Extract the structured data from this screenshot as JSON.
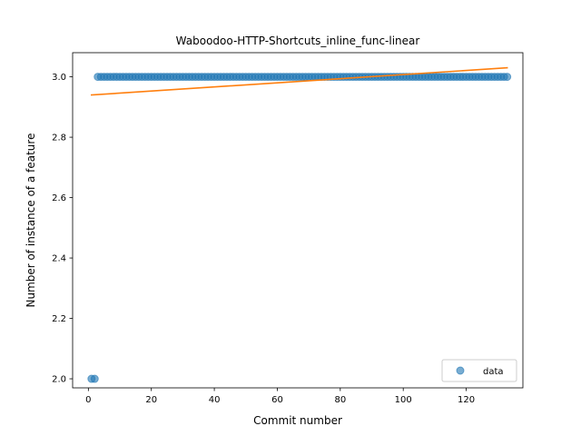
{
  "chart_data": {
    "type": "scatter",
    "title": "Waboodoo-HTTP-Shortcuts_inline_func-linear",
    "xlabel": "Commit number",
    "ylabel": "Number of instance of a feature",
    "xlim": [
      -5,
      138
    ],
    "ylim": [
      1.97,
      3.08
    ],
    "xticks": [
      0,
      20,
      40,
      60,
      80,
      100,
      120
    ],
    "yticks": [
      2.0,
      2.2,
      2.4,
      2.6,
      2.8,
      3.0
    ],
    "ytick_labels": [
      "2.0",
      "2.2",
      "2.4",
      "2.6",
      "2.8",
      "3.0"
    ],
    "grid": false,
    "legend": {
      "position": "lower-right",
      "entries": [
        "data"
      ]
    },
    "series": [
      {
        "name": "data",
        "kind": "scatter",
        "color": "#1f77b4",
        "points_low": {
          "x": [
            1,
            2
          ],
          "y": 2.0
        },
        "points_high": {
          "x_start": 3,
          "x_end": 133,
          "y": 3.0
        }
      },
      {
        "kind": "line",
        "color": "#ff7f0e",
        "x": [
          1,
          133
        ],
        "y": [
          2.94,
          3.03
        ]
      }
    ]
  }
}
